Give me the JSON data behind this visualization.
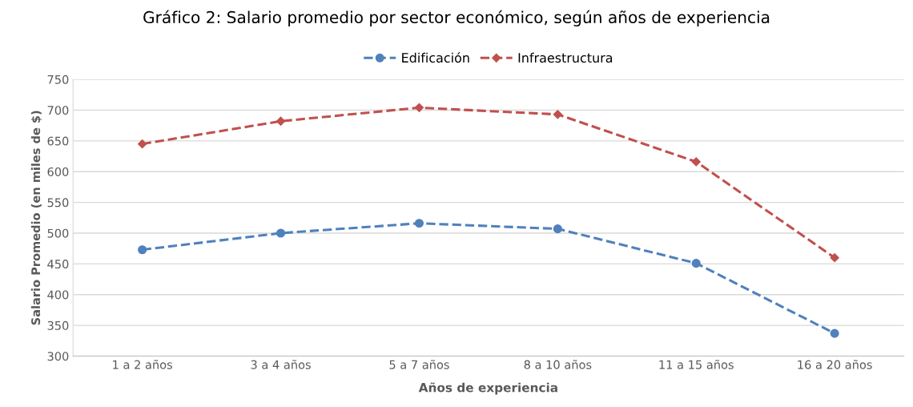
{
  "chart_data": {
    "type": "line",
    "title": "Gráfico 2: Salario promedio por sector económico, según años de experiencia",
    "xlabel": "Años de experiencia",
    "ylabel": "Salario Promedio (en miles de $)",
    "categories": [
      "1 a 2 años",
      "3 a 4 años",
      "5 a 7 años",
      "8 a 10 años",
      "11 a 15 años",
      "16 a 20 años"
    ],
    "series": [
      {
        "name": "Edificación",
        "color": "#4f81bd",
        "marker": "circle",
        "values": [
          473,
          500,
          516,
          507,
          451,
          337
        ]
      },
      {
        "name": "Infraestructura",
        "color": "#c0504d",
        "marker": "diamond",
        "values": [
          645,
          682,
          704,
          693,
          616,
          460
        ]
      }
    ],
    "ylim": [
      300,
      750
    ],
    "yticks": [
      300,
      350,
      400,
      450,
      500,
      550,
      600,
      650,
      700,
      750
    ],
    "grid": "y",
    "legend": "top",
    "line_style": "dashed"
  }
}
